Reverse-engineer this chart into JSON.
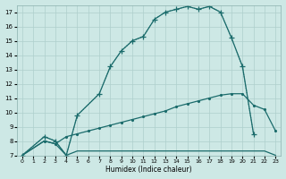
{
  "xlabel": "Humidex (Indice chaleur)",
  "bg_color": "#cde8e5",
  "line_color": "#1a6b6b",
  "grid_color": "#aecfcc",
  "xlim": [
    -0.5,
    23.5
  ],
  "ylim": [
    7,
    17.5
  ],
  "xticks": [
    0,
    1,
    2,
    3,
    4,
    5,
    6,
    7,
    8,
    9,
    10,
    11,
    12,
    13,
    14,
    15,
    16,
    17,
    18,
    19,
    20,
    21,
    22,
    23
  ],
  "yticks": [
    7,
    8,
    9,
    10,
    11,
    12,
    13,
    14,
    15,
    16,
    17
  ],
  "line1_x": [
    0,
    2,
    3,
    4,
    5,
    7,
    8,
    9,
    10,
    11,
    12,
    13,
    14,
    15,
    16,
    17,
    18,
    19,
    20,
    21
  ],
  "line1_y": [
    7.0,
    8.3,
    8.0,
    7.0,
    9.8,
    11.3,
    13.2,
    14.3,
    15.0,
    15.3,
    16.5,
    17.0,
    17.2,
    17.4,
    17.2,
    17.4,
    17.0,
    15.2,
    13.2,
    8.5
  ],
  "line2_x": [
    0,
    2,
    3,
    4,
    5,
    7,
    8,
    9,
    10,
    11,
    12,
    13,
    14,
    15,
    16,
    17,
    18,
    19,
    20,
    21
  ],
  "line2_y": [
    7.0,
    8.3,
    8.0,
    7.0,
    9.8,
    11.3,
    13.2,
    14.3,
    15.0,
    15.3,
    16.5,
    17.0,
    17.2,
    17.4,
    17.2,
    17.4,
    17.0,
    15.2,
    13.2,
    8.5
  ],
  "line3_x": [
    0,
    2,
    3,
    4,
    5,
    6,
    7,
    8,
    9,
    10,
    11,
    12,
    13,
    14,
    15,
    16,
    17,
    18,
    19,
    20,
    21,
    22,
    23
  ],
  "line3_y": [
    7.0,
    8.0,
    7.8,
    8.3,
    8.5,
    8.7,
    8.9,
    9.1,
    9.3,
    9.5,
    9.7,
    9.9,
    10.1,
    10.4,
    10.6,
    10.8,
    11.0,
    11.2,
    11.3,
    11.3,
    10.5,
    10.2,
    8.7
  ],
  "line4_x": [
    0,
    2,
    3,
    4,
    5,
    6,
    7,
    8,
    9,
    10,
    11,
    12,
    13,
    14,
    15,
    16,
    17,
    18,
    19,
    20,
    22,
    23
  ],
  "line4_y": [
    7.0,
    8.0,
    7.8,
    7.0,
    7.3,
    7.3,
    7.3,
    7.3,
    7.3,
    7.3,
    7.3,
    7.3,
    7.3,
    7.3,
    7.3,
    7.3,
    7.3,
    7.3,
    7.3,
    7.3,
    7.3,
    7.0
  ]
}
